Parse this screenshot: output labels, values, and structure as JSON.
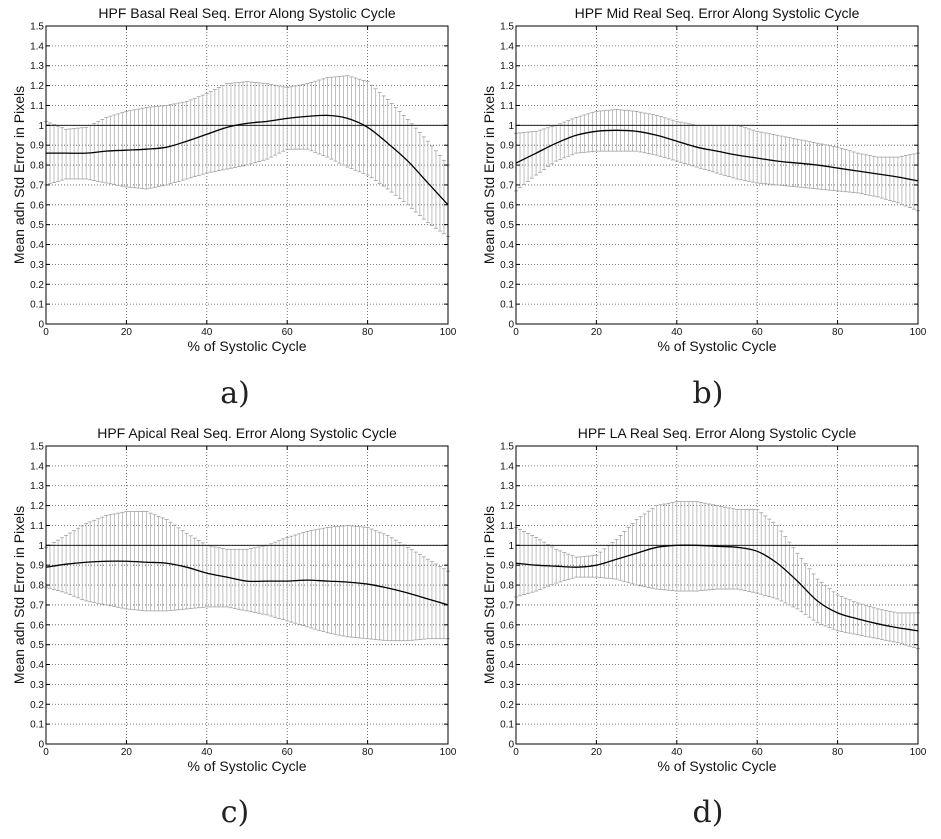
{
  "chart_data": [
    {
      "type": "line",
      "caption": "a)",
      "title": "HPF Basal Real Seq. Error Along Systolic Cycle",
      "xlabel": "% of Systolic Cycle",
      "ylabel": "Mean adn Std Error in Pixels",
      "xlim": [
        0,
        100
      ],
      "ylim": [
        0,
        1.5
      ],
      "xticks": [
        "0",
        "20",
        "40",
        "60",
        "80",
        "100"
      ],
      "yticks": [
        "0",
        "0.1",
        "0.2",
        "0.3",
        "0.4",
        "0.5",
        "0.6",
        "0.7",
        "0.8",
        "0.9",
        "1",
        "1.1",
        "1.2",
        "1.3",
        "1.4",
        "1.5"
      ],
      "grid": true,
      "reference_line": 1.0,
      "x": [
        0,
        5,
        10,
        15,
        20,
        25,
        30,
        35,
        40,
        45,
        50,
        55,
        60,
        65,
        70,
        75,
        80,
        85,
        90,
        95,
        100
      ],
      "mean": [
        0.86,
        0.86,
        0.86,
        0.87,
        0.875,
        0.88,
        0.89,
        0.92,
        0.955,
        0.99,
        1.01,
        1.02,
        1.035,
        1.045,
        1.05,
        1.035,
        0.99,
        0.91,
        0.82,
        0.71,
        0.6
      ],
      "upper": [
        1.02,
        0.98,
        0.99,
        1.04,
        1.07,
        1.09,
        1.1,
        1.12,
        1.16,
        1.21,
        1.22,
        1.21,
        1.19,
        1.21,
        1.24,
        1.25,
        1.22,
        1.13,
        1.03,
        0.92,
        0.8
      ],
      "lower": [
        0.7,
        0.73,
        0.73,
        0.71,
        0.69,
        0.68,
        0.7,
        0.73,
        0.76,
        0.78,
        0.8,
        0.83,
        0.88,
        0.88,
        0.84,
        0.79,
        0.75,
        0.68,
        0.6,
        0.51,
        0.44
      ]
    },
    {
      "type": "line",
      "caption": "b)",
      "title": "HPF Mid Real Seq. Error Along Systolic Cycle",
      "xlabel": "% of Systolic Cycle",
      "ylabel": "Mean adn Std Error in Pixels",
      "xlim": [
        0,
        100
      ],
      "ylim": [
        0,
        1.5
      ],
      "xticks": [
        "0",
        "20",
        "40",
        "60",
        "80",
        "100"
      ],
      "yticks": [
        "0",
        "0.1",
        "0.2",
        "0.3",
        "0.4",
        "0.5",
        "0.6",
        "0.7",
        "0.8",
        "0.9",
        "1",
        "1.1",
        "1.2",
        "1.3",
        "1.4",
        "1.5"
      ],
      "grid": true,
      "reference_line": 1.0,
      "x": [
        0,
        5,
        10,
        15,
        20,
        25,
        30,
        35,
        40,
        45,
        50,
        55,
        60,
        65,
        70,
        75,
        80,
        85,
        90,
        95,
        100
      ],
      "mean": [
        0.81,
        0.86,
        0.91,
        0.95,
        0.97,
        0.975,
        0.97,
        0.95,
        0.92,
        0.89,
        0.87,
        0.85,
        0.835,
        0.82,
        0.81,
        0.8,
        0.785,
        0.77,
        0.755,
        0.74,
        0.72
      ],
      "upper": [
        0.96,
        0.97,
        1.0,
        1.04,
        1.07,
        1.08,
        1.07,
        1.05,
        1.02,
        1.0,
        1.0,
        1.0,
        0.97,
        0.95,
        0.93,
        0.91,
        0.89,
        0.86,
        0.84,
        0.84,
        0.86
      ],
      "lower": [
        0.67,
        0.75,
        0.82,
        0.86,
        0.87,
        0.87,
        0.87,
        0.85,
        0.82,
        0.79,
        0.76,
        0.73,
        0.71,
        0.7,
        0.69,
        0.68,
        0.67,
        0.66,
        0.64,
        0.61,
        0.57
      ]
    },
    {
      "type": "line",
      "caption": "c)",
      "title": "HPF Apical Real Seq. Error Along Systolic Cycle",
      "xlabel": "% of Systolic Cycle",
      "ylabel": "Mean adn Std Error in Pixels",
      "xlim": [
        0,
        100
      ],
      "ylim": [
        0,
        1.5
      ],
      "xticks": [
        "0",
        "20",
        "40",
        "60",
        "80",
        "100"
      ],
      "yticks": [
        "0",
        "0.1",
        "0.2",
        "0.3",
        "0.4",
        "0.5",
        "0.6",
        "0.7",
        "0.8",
        "0.9",
        "1",
        "1.1",
        "1.2",
        "1.3",
        "1.4",
        "1.5"
      ],
      "grid": true,
      "reference_line": 1.0,
      "x": [
        0,
        5,
        10,
        15,
        20,
        25,
        30,
        35,
        40,
        45,
        50,
        55,
        60,
        65,
        70,
        75,
        80,
        85,
        90,
        95,
        100
      ],
      "mean": [
        0.89,
        0.905,
        0.915,
        0.92,
        0.92,
        0.915,
        0.91,
        0.89,
        0.86,
        0.84,
        0.82,
        0.82,
        0.82,
        0.825,
        0.82,
        0.815,
        0.805,
        0.785,
        0.76,
        0.73,
        0.7
      ],
      "upper": [
        0.99,
        1.05,
        1.11,
        1.15,
        1.17,
        1.17,
        1.13,
        1.06,
        1.0,
        0.98,
        0.98,
        1.0,
        1.04,
        1.07,
        1.09,
        1.1,
        1.09,
        1.05,
        0.99,
        0.93,
        0.87
      ],
      "lower": [
        0.79,
        0.76,
        0.72,
        0.7,
        0.68,
        0.67,
        0.67,
        0.68,
        0.69,
        0.69,
        0.67,
        0.65,
        0.62,
        0.59,
        0.56,
        0.54,
        0.53,
        0.52,
        0.52,
        0.53,
        0.53
      ]
    },
    {
      "type": "line",
      "caption": "d)",
      "title": "HPF LA Real Seq. Error Along Systolic Cycle",
      "xlabel": "% of Systolic Cycle",
      "ylabel": "Mean adn Std Error in Pixels",
      "xlim": [
        0,
        100
      ],
      "ylim": [
        0,
        1.5
      ],
      "xticks": [
        "0",
        "20",
        "40",
        "60",
        "80",
        "100"
      ],
      "yticks": [
        "0",
        "0.1",
        "0.2",
        "0.3",
        "0.4",
        "0.5",
        "0.6",
        "0.7",
        "0.8",
        "0.9",
        "1",
        "1.1",
        "1.2",
        "1.3",
        "1.4",
        "1.5"
      ],
      "grid": true,
      "reference_line": 1.0,
      "x": [
        0,
        5,
        10,
        15,
        20,
        25,
        30,
        35,
        40,
        45,
        50,
        55,
        60,
        65,
        70,
        75,
        80,
        85,
        90,
        95,
        100
      ],
      "mean": [
        0.91,
        0.9,
        0.895,
        0.89,
        0.9,
        0.93,
        0.96,
        0.99,
        1.0,
        1.0,
        0.995,
        0.99,
        0.97,
        0.91,
        0.82,
        0.72,
        0.66,
        0.63,
        0.605,
        0.585,
        0.57
      ],
      "upper": [
        1.09,
        1.04,
        0.98,
        0.94,
        0.95,
        1.03,
        1.13,
        1.2,
        1.22,
        1.22,
        1.2,
        1.18,
        1.18,
        1.1,
        0.96,
        0.83,
        0.75,
        0.71,
        0.68,
        0.66,
        0.66
      ],
      "lower": [
        0.74,
        0.77,
        0.81,
        0.84,
        0.84,
        0.83,
        0.8,
        0.78,
        0.77,
        0.77,
        0.78,
        0.78,
        0.76,
        0.73,
        0.68,
        0.61,
        0.57,
        0.55,
        0.53,
        0.51,
        0.48
      ]
    }
  ]
}
